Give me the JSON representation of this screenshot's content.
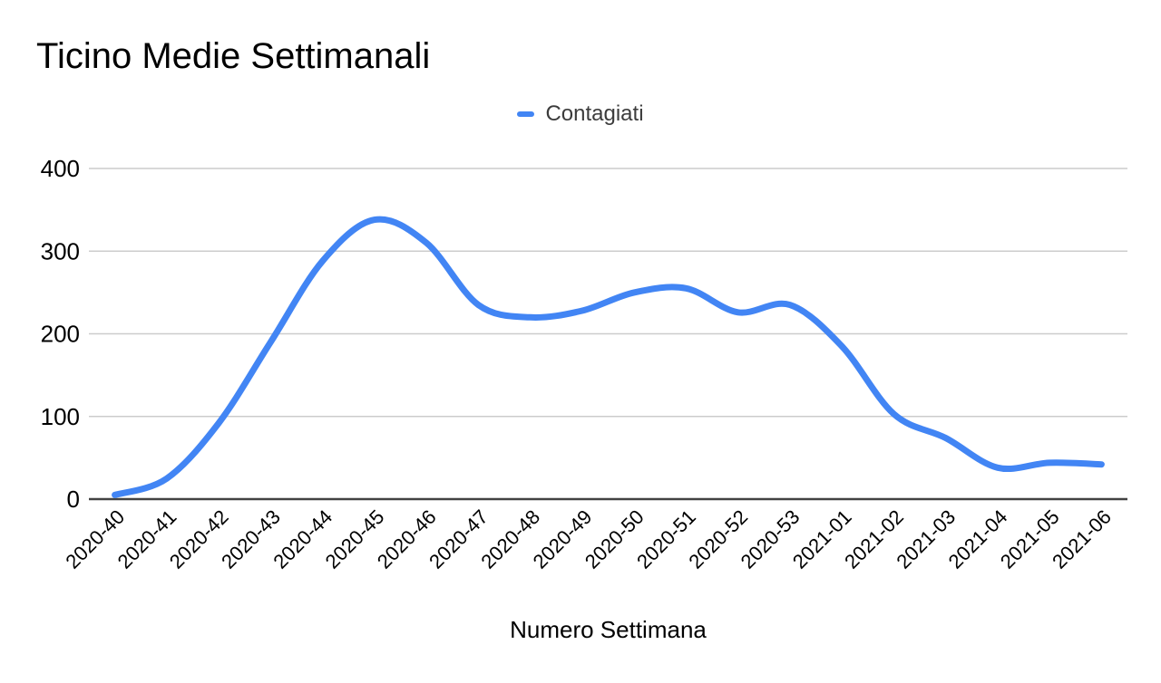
{
  "chart_data": {
    "type": "line",
    "title": "Ticino Medie Settimanali",
    "xlabel": "Numero Settimana",
    "ylabel": "",
    "legend_position": "top-center",
    "grid": true,
    "smooth": true,
    "ylim": [
      0,
      400
    ],
    "yticks": [
      0,
      100,
      200,
      300,
      400
    ],
    "categories": [
      "2020-40",
      "2020-41",
      "2020-42",
      "2020-43",
      "2020-44",
      "2020-45",
      "2020-46",
      "2020-47",
      "2020-48",
      "2020-49",
      "2020-50",
      "2020-51",
      "2020-52",
      "2020-53",
      "2021-01",
      "2021-02",
      "2021-03",
      "2021-04",
      "2021-05",
      "2021-06"
    ],
    "series": [
      {
        "name": "Contagiati",
        "color": "#4285f4",
        "values": [
          5,
          25,
          92,
          190,
          288,
          338,
          310,
          235,
          220,
          228,
          250,
          255,
          226,
          235,
          185,
          103,
          74,
          38,
          44,
          42
        ]
      }
    ],
    "colors": {
      "series_blue": "#4285f4",
      "gridline": "#cccccc",
      "axis_baseline": "#424242",
      "tick_text": "#000000",
      "legend_text": "#3c3c3c",
      "background": "#ffffff"
    }
  }
}
